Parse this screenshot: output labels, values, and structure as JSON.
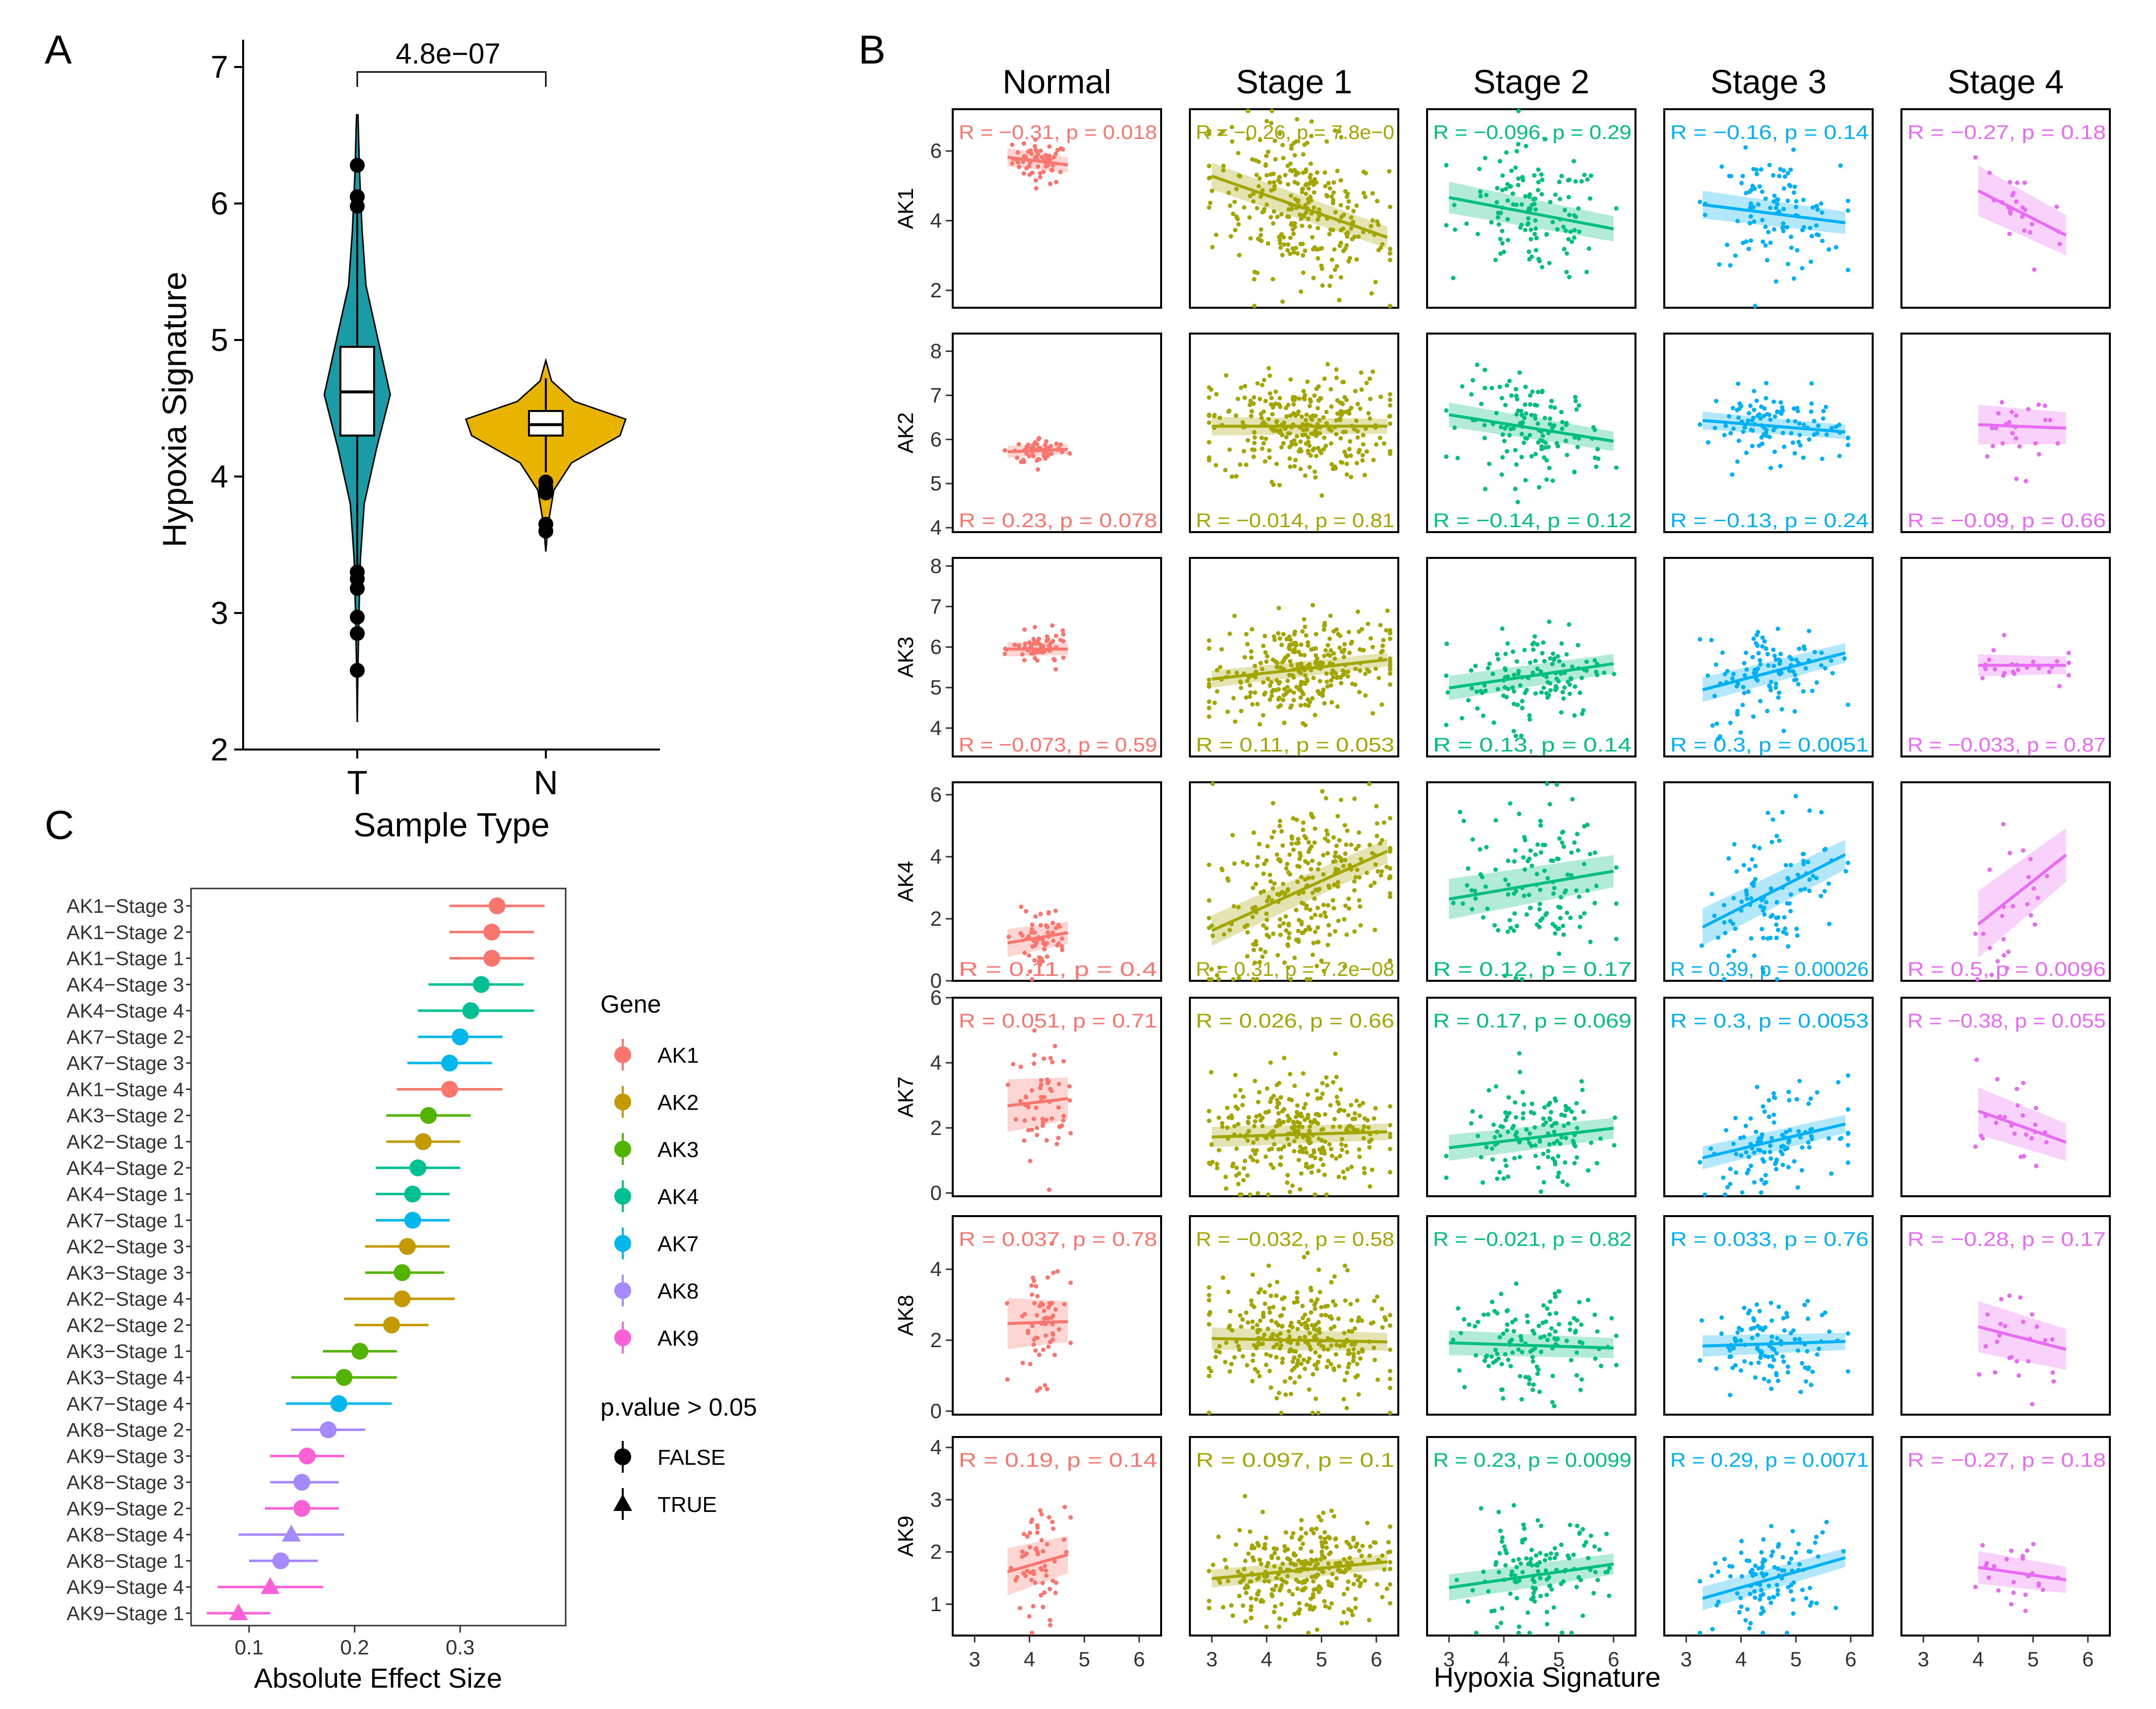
{
  "panel_letters": {
    "a": "A",
    "b": "B",
    "c": "C"
  },
  "colors": {
    "AK1": "#F8766D",
    "AK2": "#C49A00",
    "AK3": "#53B400",
    "AK4": "#00C094",
    "AK7": "#00B6EB",
    "AK8": "#A58AFF",
    "AK9": "#FB61D7",
    "Normal": "#F8766D",
    "Stage 1": "#A3A500",
    "Stage 2": "#00BF7D",
    "Stage 3": "#00B0F6",
    "Stage 4": "#E76BF3",
    "violin_T": "#1A9BA6",
    "violin_N": "#E8B400"
  },
  "chart_data": [
    {
      "id": "A",
      "type": "violin",
      "title": "",
      "xlabel": "Sample Type",
      "ylabel": "Hypoxia Signature",
      "categories": [
        "T",
        "N"
      ],
      "ylim": [
        2,
        7.2
      ],
      "yticks": [
        2,
        3,
        4,
        5,
        6,
        7
      ],
      "annotation": "4.8e−07",
      "violins": [
        {
          "group": "T",
          "min": 2.2,
          "max": 6.65,
          "q1": 4.3,
          "median": 4.62,
          "q3": 4.95,
          "whisker_low": 3.35,
          "whisker_high": 6.0,
          "outliers": [
            6.28,
            6.05,
            5.98,
            3.3,
            3.25,
            3.18,
            2.97,
            2.85,
            2.58
          ]
        },
        {
          "group": "N",
          "min": 3.45,
          "max": 4.85,
          "q1": 4.3,
          "median": 4.38,
          "q3": 4.48,
          "whisker_low": 4.03,
          "whisker_high": 4.72,
          "outliers": [
            3.96,
            3.92,
            3.88,
            3.65,
            3.6
          ]
        }
      ]
    },
    {
      "id": "B",
      "type": "scatter",
      "xlabel": "Hypoxia Signature",
      "stages": [
        "Normal",
        "Stage 1",
        "Stage 2",
        "Stage 3",
        "Stage 4"
      ],
      "xlim": [
        2.6,
        6.4
      ],
      "xticks": [
        3,
        4,
        5,
        6
      ],
      "genes": [
        {
          "gene": "AK1",
          "ylim": [
            1.5,
            7.2
          ],
          "yticks": [
            2,
            4,
            6
          ],
          "label_pos": "top",
          "labels": [
            "R = −0.31, p = 0.018",
            "R = −0.26, p = 7.8e−0",
            "R = −0.096, p = 0.29",
            "R = −0.16, p = 0.14",
            "R = −0.27, p = 0.18"
          ],
          "centers": [
            5.7,
            4.4,
            4.2,
            4.2,
            4.3
          ],
          "sd": [
            0.3,
            1.1,
            0.9,
            0.8,
            0.8
          ],
          "slopes": [
            -0.2,
            -0.55,
            -0.3,
            -0.2,
            -0.8
          ]
        },
        {
          "gene": "AK2",
          "ylim": [
            3.9,
            8.4
          ],
          "yticks": [
            4,
            5,
            6,
            7,
            8
          ],
          "label_pos": "bottom",
          "labels": [
            "R = 0.23, p = 0.078",
            "R = −0.014, p = 0.81",
            "R = −0.14, p = 0.12",
            "R = −0.13, p = 0.24",
            "R = −0.09, p = 0.66"
          ],
          "centers": [
            5.75,
            6.3,
            6.25,
            6.3,
            6.3
          ],
          "sd": [
            0.15,
            0.6,
            0.55,
            0.4,
            0.5
          ],
          "slopes": [
            0.05,
            0.0,
            -0.2,
            -0.1,
            -0.05
          ]
        },
        {
          "gene": "AK3",
          "ylim": [
            3.3,
            8.2
          ],
          "yticks": [
            4,
            5,
            6,
            7,
            8
          ],
          "label_pos": "bottom",
          "labels": [
            "R = −0.073, p = 0.59",
            "R = 0.11, p = 0.053",
            "R = 0.13, p = 0.14",
            "R = 0.3, p = 0.0051",
            "R = −0.033, p = 0.87"
          ],
          "centers": [
            5.95,
            5.45,
            5.3,
            5.4,
            5.55
          ],
          "sd": [
            0.2,
            0.6,
            0.6,
            0.6,
            0.3
          ],
          "slopes": [
            0.0,
            0.15,
            0.2,
            0.35,
            0.0
          ]
        },
        {
          "gene": "AK4",
          "ylim": [
            0,
            6.4
          ],
          "yticks": [
            0,
            2,
            4,
            6
          ],
          "label_pos": "bottom",
          "labels": [
            "R = 0.11, p = 0.4",
            "R = 0.31, p = 7.2e−08",
            "R = 0.12, p = 0.17",
            "R = 0.39, p = 0.00026",
            "R = 0.5, p = 0.0096"
          ],
          "centers": [
            1.4,
            2.9,
            3.1,
            2.9,
            2.8
          ],
          "sd": [
            0.5,
            1.4,
            1.3,
            1.2,
            1.2
          ],
          "slopes": [
            0.3,
            0.8,
            0.3,
            0.9,
            1.4
          ]
        },
        {
          "gene": "AK7",
          "ylim": [
            -0.1,
            6.0
          ],
          "yticks": [
            0,
            2,
            4,
            6
          ],
          "label_pos": "top",
          "labels": [
            "R = 0.051, p = 0.71",
            "R = 0.026, p = 0.66",
            "R = 0.17, p = 0.069",
            "R = 0.3, p = 0.0053",
            "R = −0.38, p = 0.055"
          ],
          "centers": [
            2.8,
            1.8,
            1.7,
            1.6,
            2.1
          ],
          "sd": [
            0.9,
            0.9,
            0.8,
            0.7,
            0.8
          ],
          "slopes": [
            0.2,
            0.05,
            0.2,
            0.4,
            -0.6
          ]
        },
        {
          "gene": "AK8",
          "ylim": [
            -0.1,
            5.5
          ],
          "yticks": [
            0,
            2,
            4
          ],
          "label_pos": "top",
          "labels": [
            "R = 0.037, p = 0.78",
            "R = −0.032, p = 0.58",
            "R = −0.021, p = 0.82",
            "R = 0.033, p = 0.76",
            "R = −0.28, p = 0.17"
          ],
          "centers": [
            2.5,
            2.0,
            1.85,
            1.9,
            2.1
          ],
          "sd": [
            0.8,
            0.9,
            0.7,
            0.6,
            0.8
          ],
          "slopes": [
            0.05,
            -0.03,
            -0.05,
            0.05,
            -0.4
          ]
        },
        {
          "gene": "AK9",
          "ylim": [
            0.4,
            4.2
          ],
          "yticks": [
            1,
            2,
            3,
            4
          ],
          "label_pos": "top",
          "labels": [
            "R = 0.19, p = 0.14",
            "R = 0.097, p = 0.1",
            "R = 0.23, p = 0.0099",
            "R = 0.29, p = 0.0071",
            "R = −0.27, p = 0.18"
          ],
          "centers": [
            1.8,
            1.65,
            1.55,
            1.5,
            1.6
          ],
          "sd": [
            0.5,
            0.5,
            0.5,
            0.45,
            0.35
          ],
          "slopes": [
            0.3,
            0.1,
            0.15,
            0.3,
            -0.15
          ]
        }
      ]
    },
    {
      "id": "C",
      "type": "forest",
      "xlabel": "Absolute Effect Size",
      "xlim": [
        0.045,
        0.4
      ],
      "xticks": [
        0.1,
        0.2,
        0.3
      ],
      "xtick_labels": [
        "0.1",
        "0.2",
        "0.3"
      ],
      "legend_gene_title": "Gene",
      "legend_pvalue_title": "p.value > 0.05",
      "legend_gene_items": [
        "AK1",
        "AK2",
        "AK3",
        "AK4",
        "AK7",
        "AK8",
        "AK9"
      ],
      "legend_shape_items": [
        "FALSE",
        "TRUE"
      ],
      "rows": [
        {
          "label": "AK1−Stage 3",
          "gene": "AK1",
          "est": 0.335,
          "lo": 0.29,
          "hi": 0.38,
          "ns": false
        },
        {
          "label": "AK1−Stage 2",
          "gene": "AK1",
          "est": 0.33,
          "lo": 0.29,
          "hi": 0.37,
          "ns": false
        },
        {
          "label": "AK1−Stage 1",
          "gene": "AK1",
          "est": 0.33,
          "lo": 0.29,
          "hi": 0.37,
          "ns": false
        },
        {
          "label": "AK4−Stage 3",
          "gene": "AK4",
          "est": 0.32,
          "lo": 0.27,
          "hi": 0.36,
          "ns": false
        },
        {
          "label": "AK4−Stage 4",
          "gene": "AK4",
          "est": 0.31,
          "lo": 0.26,
          "hi": 0.37,
          "ns": false
        },
        {
          "label": "AK7−Stage 2",
          "gene": "AK7",
          "est": 0.3,
          "lo": 0.26,
          "hi": 0.34,
          "ns": false
        },
        {
          "label": "AK7−Stage 3",
          "gene": "AK7",
          "est": 0.29,
          "lo": 0.25,
          "hi": 0.33,
          "ns": false
        },
        {
          "label": "AK1−Stage 4",
          "gene": "AK1",
          "est": 0.29,
          "lo": 0.24,
          "hi": 0.34,
          "ns": false
        },
        {
          "label": "AK3−Stage 2",
          "gene": "AK3",
          "est": 0.27,
          "lo": 0.23,
          "hi": 0.31,
          "ns": false
        },
        {
          "label": "AK2−Stage 1",
          "gene": "AK2",
          "est": 0.265,
          "lo": 0.23,
          "hi": 0.3,
          "ns": false
        },
        {
          "label": "AK4−Stage 2",
          "gene": "AK4",
          "est": 0.26,
          "lo": 0.22,
          "hi": 0.3,
          "ns": false
        },
        {
          "label": "AK4−Stage 1",
          "gene": "AK4",
          "est": 0.255,
          "lo": 0.22,
          "hi": 0.29,
          "ns": false
        },
        {
          "label": "AK7−Stage 1",
          "gene": "AK7",
          "est": 0.255,
          "lo": 0.22,
          "hi": 0.29,
          "ns": false
        },
        {
          "label": "AK2−Stage 3",
          "gene": "AK2",
          "est": 0.25,
          "lo": 0.21,
          "hi": 0.29,
          "ns": false
        },
        {
          "label": "AK3−Stage 3",
          "gene": "AK3",
          "est": 0.245,
          "lo": 0.21,
          "hi": 0.285,
          "ns": false
        },
        {
          "label": "AK2−Stage 4",
          "gene": "AK2",
          "est": 0.245,
          "lo": 0.19,
          "hi": 0.295,
          "ns": false
        },
        {
          "label": "AK2−Stage 2",
          "gene": "AK2",
          "est": 0.235,
          "lo": 0.2,
          "hi": 0.27,
          "ns": false
        },
        {
          "label": "AK3−Stage 1",
          "gene": "AK3",
          "est": 0.205,
          "lo": 0.17,
          "hi": 0.24,
          "ns": false
        },
        {
          "label": "AK3−Stage 4",
          "gene": "AK3",
          "est": 0.19,
          "lo": 0.14,
          "hi": 0.24,
          "ns": false
        },
        {
          "label": "AK7−Stage 4",
          "gene": "AK7",
          "est": 0.185,
          "lo": 0.135,
          "hi": 0.235,
          "ns": false
        },
        {
          "label": "AK8−Stage 2",
          "gene": "AK8",
          "est": 0.175,
          "lo": 0.14,
          "hi": 0.21,
          "ns": false
        },
        {
          "label": "AK9−Stage 3",
          "gene": "AK9",
          "est": 0.155,
          "lo": 0.12,
          "hi": 0.19,
          "ns": false
        },
        {
          "label": "AK8−Stage 3",
          "gene": "AK8",
          "est": 0.15,
          "lo": 0.12,
          "hi": 0.185,
          "ns": false
        },
        {
          "label": "AK9−Stage 2",
          "gene": "AK9",
          "est": 0.15,
          "lo": 0.115,
          "hi": 0.185,
          "ns": false
        },
        {
          "label": "AK8−Stage 4",
          "gene": "AK8",
          "est": 0.14,
          "lo": 0.09,
          "hi": 0.19,
          "ns": true
        },
        {
          "label": "AK8−Stage 1",
          "gene": "AK8",
          "est": 0.13,
          "lo": 0.1,
          "hi": 0.165,
          "ns": false
        },
        {
          "label": "AK9−Stage 4",
          "gene": "AK9",
          "est": 0.12,
          "lo": 0.07,
          "hi": 0.17,
          "ns": true
        },
        {
          "label": "AK9−Stage 1",
          "gene": "AK9",
          "est": 0.09,
          "lo": 0.06,
          "hi": 0.12,
          "ns": true
        }
      ]
    }
  ]
}
